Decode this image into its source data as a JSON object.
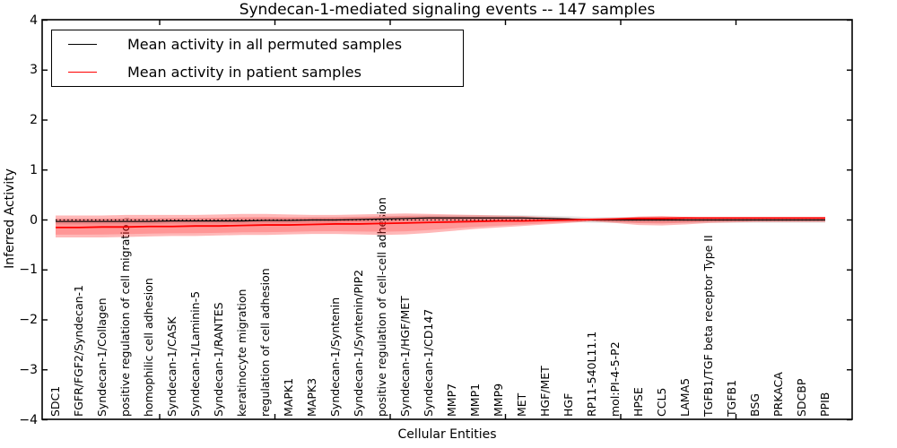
{
  "title": "Syndecan-1-mediated signaling events -- 147 samples",
  "axes": {
    "ylabel": "Inferred Activity",
    "xlabel": "Cellular Entities",
    "ytick_labels": [
      "4",
      "3",
      "2",
      "1",
      "0",
      "−1",
      "−2",
      "−3",
      "−4"
    ]
  },
  "legend": {
    "items": [
      {
        "label": "Mean activity in all permuted samples",
        "color": "#000000"
      },
      {
        "label": "Mean activity in patient samples",
        "color": "#ff0000"
      }
    ]
  },
  "colors": {
    "patient_line": "#ff0000",
    "permuted_line": "#000000",
    "patient_band": "#ff0000",
    "permuted_band": "#e3e3e3",
    "frame": "#000000"
  },
  "chart_data": {
    "type": "line",
    "title": "Syndecan-1-mediated signaling events -- 147 samples",
    "xlabel": "Cellular Entities",
    "ylabel": "Inferred Activity",
    "ylim": [
      -4,
      4
    ],
    "yticks": [
      -4,
      -3,
      -2,
      -1,
      0,
      1,
      2,
      3,
      4
    ],
    "baseline": {
      "value": 0,
      "style": "dotted"
    },
    "legend_position": "upper left",
    "categories": [
      "SDC1",
      "FGFR/FGF2/Syndecan-1",
      "Syndecan-1/Collagen",
      "positive regulation of cell migration",
      "homophilic cell adhesion",
      "Syndecan-1/CASK",
      "Syndecan-1/Laminin-5",
      "Syndecan-1/RANTES",
      "keratinocyte migration",
      "regulation of cell adhesion",
      "MAPK1",
      "MAPK3",
      "Syndecan-1/Syntenin",
      "Syndecan-1/Syntenin/PIP2",
      "positive regulation of cell-cell adhesion",
      "Syndecan-1/HGF/MET",
      "Syndecan-1/CD147",
      "MMP7",
      "MMP1",
      "MMP9",
      "MET",
      "HGF/MET",
      "HGF",
      "RP11-540L11.1",
      "mol:PI-4-5-P2",
      "HPSE",
      "CCL5",
      "LAMA5",
      "TGFB1/TGF beta receptor Type II",
      "TGFB1",
      "BSG",
      "PRKACA",
      "SDCBP",
      "PPIB"
    ],
    "series": [
      {
        "name": "Mean activity in all permuted samples",
        "color": "#000000",
        "values": [
          -0.03,
          -0.03,
          -0.03,
          -0.03,
          -0.03,
          -0.02,
          -0.02,
          -0.02,
          -0.02,
          -0.01,
          -0.01,
          0.0,
          0.0,
          0.01,
          0.02,
          0.03,
          0.04,
          0.04,
          0.04,
          0.04,
          0.04,
          0.03,
          0.02,
          0.0,
          0.0,
          0.0,
          0.0,
          0.0,
          0.0,
          0.0,
          0.0,
          0.0,
          0.0,
          0.0
        ]
      },
      {
        "name": "Mean activity in patient samples",
        "color": "#ff0000",
        "values": [
          -0.15,
          -0.15,
          -0.14,
          -0.14,
          -0.13,
          -0.13,
          -0.12,
          -0.12,
          -0.11,
          -0.1,
          -0.1,
          -0.09,
          -0.08,
          -0.08,
          -0.07,
          -0.06,
          -0.05,
          -0.04,
          -0.03,
          -0.02,
          -0.02,
          -0.01,
          0.0,
          0.01,
          0.02,
          0.03,
          0.03,
          0.04,
          0.04,
          0.04,
          0.04,
          0.04,
          0.04,
          0.04
        ]
      }
    ],
    "bands": [
      {
        "name": "patient-samples-spread",
        "color": "#ff0000",
        "opacity": 0.28,
        "upper": [
          0.09,
          0.09,
          0.09,
          0.1,
          0.1,
          0.1,
          0.1,
          0.11,
          0.12,
          0.12,
          0.11,
          0.1,
          0.1,
          0.11,
          0.12,
          0.13,
          0.12,
          0.11,
          0.1,
          0.09,
          0.08,
          0.06,
          0.04,
          0.02,
          0.04,
          0.07,
          0.08,
          0.06,
          0.05,
          0.05,
          0.05,
          0.05,
          0.05,
          0.05
        ],
        "lower": [
          -0.35,
          -0.35,
          -0.35,
          -0.34,
          -0.33,
          -0.32,
          -0.32,
          -0.31,
          -0.3,
          -0.3,
          -0.29,
          -0.28,
          -0.28,
          -0.29,
          -0.3,
          -0.29,
          -0.26,
          -0.22,
          -0.18,
          -0.15,
          -0.12,
          -0.09,
          -0.06,
          -0.03,
          -0.06,
          -0.1,
          -0.11,
          -0.09,
          -0.06,
          -0.05,
          -0.04,
          -0.04,
          -0.04,
          -0.04
        ]
      },
      {
        "name": "permuted-samples-spread",
        "color": "#e3e3e3",
        "opacity": 1,
        "halfwidth": 0.055
      }
    ]
  }
}
